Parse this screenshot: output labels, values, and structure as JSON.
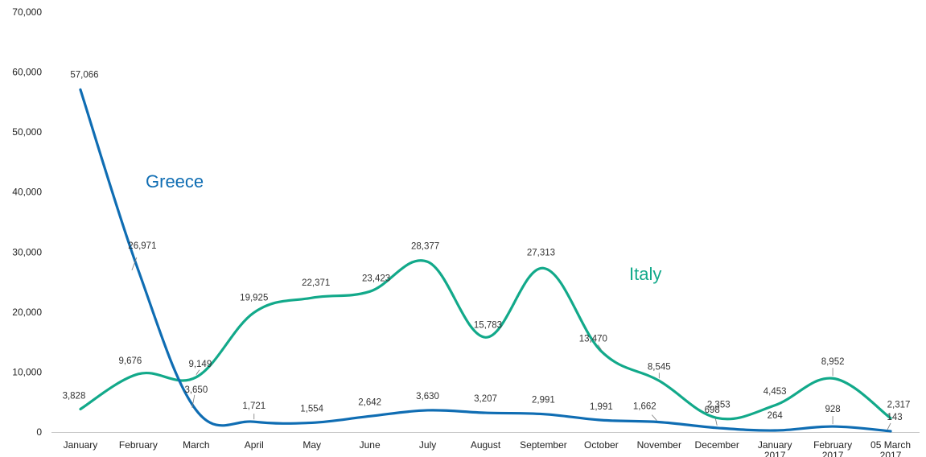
{
  "chart_data": {
    "type": "line",
    "categories": [
      "January",
      "February",
      "March",
      "April",
      "May",
      "June",
      "July",
      "August",
      "September",
      "October",
      "November",
      "December",
      "January 2017",
      "February 2017",
      "05 March 2017"
    ],
    "ylim": [
      0,
      70000
    ],
    "yticks": [
      0,
      10000,
      20000,
      30000,
      40000,
      50000,
      60000,
      70000
    ],
    "ytick_labels": [
      "0",
      "10,000",
      "20,000",
      "30,000",
      "40,000",
      "50,000",
      "60,000",
      "70,000"
    ],
    "grid": false,
    "legend": "inline labels",
    "series": [
      {
        "name": "Greece",
        "color": "#0f6db3",
        "values": [
          57066,
          26971,
          3650,
          1721,
          1554,
          2642,
          3630,
          3207,
          2991,
          1991,
          1662,
          698,
          264,
          928,
          143
        ],
        "labels": [
          "57,066",
          "26,971",
          "3,650",
          "1,721",
          "1,554",
          "2,642",
          "3,630",
          "3,207",
          "2,991",
          "1,991",
          "1,662",
          "698",
          "264",
          "928",
          "143"
        ]
      },
      {
        "name": "Italy",
        "color": "#12a98a",
        "values": [
          3828,
          9676,
          9149,
          19925,
          22371,
          23423,
          28377,
          15783,
          27313,
          13470,
          8545,
          2353,
          4453,
          8952,
          2317
        ],
        "labels": [
          "3,828",
          "9,676",
          "9,149",
          "19,925",
          "22,371",
          "23,423",
          "28,377",
          "15,783",
          "27,313",
          "13,470",
          "8,545",
          "2,353",
          "4,453",
          "8,952",
          "2,317"
        ]
      }
    ]
  }
}
